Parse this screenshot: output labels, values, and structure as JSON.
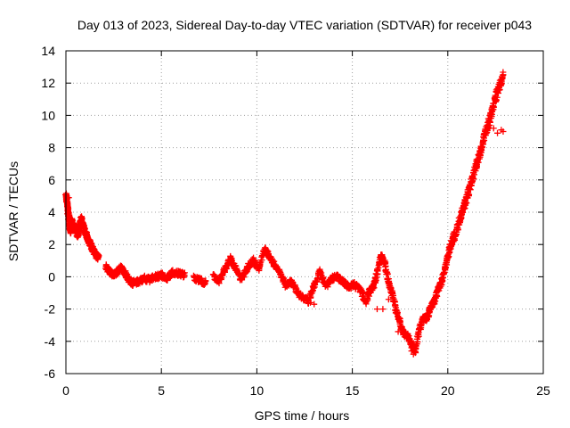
{
  "chart_data": {
    "type": "scatter",
    "title": "Day 013 of 2023, Sidereal Day-to-day VTEC variation (SDTVAR) for receiver p043",
    "xlabel": "GPS time / hours",
    "ylabel": "SDTVAR / TECUs",
    "xlim": [
      0,
      25
    ],
    "ylim": [
      -6,
      14
    ],
    "xticks": [
      "0",
      "5",
      "10",
      "15",
      "20",
      "25"
    ],
    "yticks": [
      "-6",
      "-4",
      "-2",
      "0",
      "2",
      "4",
      "6",
      "8",
      "10",
      "12",
      "14"
    ],
    "grid": true,
    "marker": "plus",
    "color": "#ff0000",
    "series": [
      {
        "name": "SDTVAR",
        "curve": [
          [
            0.0,
            5.0
          ],
          [
            0.05,
            4.7
          ],
          [
            0.1,
            4.2
          ],
          [
            0.15,
            3.7
          ],
          [
            0.2,
            3.1
          ],
          [
            0.25,
            2.8
          ],
          [
            0.3,
            3.5
          ],
          [
            0.4,
            3.2
          ],
          [
            0.5,
            3.0
          ],
          [
            0.6,
            2.6
          ],
          [
            0.7,
            2.9
          ],
          [
            0.8,
            3.6
          ],
          [
            0.9,
            3.2
          ],
          [
            1.0,
            2.8
          ],
          [
            1.1,
            2.5
          ],
          [
            1.2,
            2.2
          ],
          [
            1.3,
            2.0
          ],
          [
            1.4,
            1.7
          ],
          [
            1.5,
            1.5
          ],
          [
            1.6,
            1.3
          ],
          [
            1.7,
            1.2
          ],
          [
            2.1,
            0.6
          ],
          [
            2.3,
            0.3
          ],
          [
            2.5,
            0.1
          ],
          [
            2.7,
            0.3
          ],
          [
            2.9,
            0.6
          ],
          [
            3.1,
            0.2
          ],
          [
            3.3,
            -0.2
          ],
          [
            3.5,
            -0.4
          ],
          [
            3.8,
            -0.3
          ],
          [
            4.1,
            -0.1
          ],
          [
            4.4,
            -0.2
          ],
          [
            4.7,
            0.0
          ],
          [
            5.0,
            0.1
          ],
          [
            5.3,
            -0.1
          ],
          [
            5.6,
            0.3
          ],
          [
            5.9,
            0.2
          ],
          [
            6.2,
            0.1
          ],
          [
            6.7,
            -0.1
          ],
          [
            7.0,
            -0.2
          ],
          [
            7.3,
            -0.4
          ],
          [
            7.7,
            0.1
          ],
          [
            8.0,
            -0.3
          ],
          [
            8.3,
            0.4
          ],
          [
            8.6,
            1.1
          ],
          [
            8.9,
            0.5
          ],
          [
            9.2,
            -0.2
          ],
          [
            9.5,
            0.6
          ],
          [
            9.8,
            1.0
          ],
          [
            10.1,
            0.5
          ],
          [
            10.4,
            1.7
          ],
          [
            10.6,
            1.4
          ],
          [
            10.9,
            0.8
          ],
          [
            11.2,
            0.3
          ],
          [
            11.5,
            -0.5
          ],
          [
            11.8,
            -0.3
          ],
          [
            12.1,
            -0.9
          ],
          [
            12.4,
            -1.3
          ],
          [
            12.7,
            -1.5
          ],
          [
            13.0,
            -0.5
          ],
          [
            13.3,
            0.3
          ],
          [
            13.6,
            -0.6
          ],
          [
            13.9,
            -0.1
          ],
          [
            14.2,
            0.0
          ],
          [
            14.5,
            -0.3
          ],
          [
            14.8,
            -0.6
          ],
          [
            15.1,
            -0.5
          ],
          [
            15.4,
            -0.8
          ],
          [
            15.7,
            -1.6
          ],
          [
            15.9,
            -0.9
          ],
          [
            16.1,
            -0.6
          ],
          [
            16.3,
            0.3
          ],
          [
            16.5,
            1.3
          ],
          [
            16.7,
            0.9
          ],
          [
            16.9,
            -0.3
          ],
          [
            17.1,
            -1.1
          ],
          [
            17.3,
            -2.1
          ],
          [
            17.5,
            -2.9
          ],
          [
            17.7,
            -3.5
          ],
          [
            17.9,
            -3.7
          ],
          [
            18.1,
            -4.2
          ],
          [
            18.3,
            -4.6
          ],
          [
            18.5,
            -3.3
          ],
          [
            18.7,
            -2.6
          ],
          [
            18.9,
            -2.6
          ],
          [
            19.1,
            -1.9
          ],
          [
            19.3,
            -1.5
          ],
          [
            19.5,
            -0.8
          ],
          [
            19.7,
            -0.2
          ],
          [
            19.9,
            0.7
          ],
          [
            20.1,
            1.8
          ],
          [
            20.3,
            2.4
          ],
          [
            20.5,
            3.0
          ],
          [
            20.7,
            3.8
          ],
          [
            20.9,
            4.6
          ],
          [
            21.1,
            5.3
          ],
          [
            21.3,
            6.1
          ],
          [
            21.5,
            7.0
          ],
          [
            21.7,
            7.7
          ],
          [
            21.9,
            8.6
          ],
          [
            22.1,
            9.4
          ],
          [
            22.3,
            10.2
          ],
          [
            22.5,
            11.1
          ],
          [
            22.7,
            11.8
          ],
          [
            22.9,
            12.4
          ]
        ],
        "extra": [
          [
            22.2,
            9.6
          ],
          [
            22.4,
            9.2
          ],
          [
            22.6,
            8.9
          ],
          [
            22.8,
            9.1
          ],
          [
            22.9,
            9.0
          ],
          [
            16.3,
            -2.0
          ],
          [
            16.6,
            -2.0
          ],
          [
            16.9,
            -1.4
          ],
          [
            18.1,
            -4.6
          ],
          [
            18.2,
            -4.8
          ],
          [
            17.5,
            -2.6
          ],
          [
            17.4,
            -3.4
          ],
          [
            13.0,
            -1.7
          ],
          [
            12.8,
            -1.6
          ],
          [
            0.15,
            4.9
          ],
          [
            0.08,
            3.9
          ]
        ]
      }
    ]
  }
}
